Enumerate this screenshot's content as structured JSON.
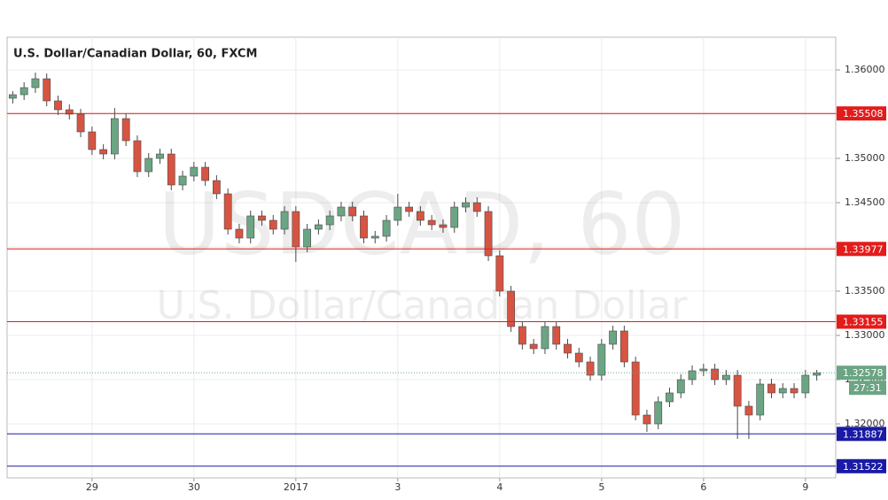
{
  "chart_data": {
    "type": "candlestick",
    "title": "U.S. Dollar/Canadian Dollar, 60, FXCM",
    "watermark": "USDCAD, 60",
    "watermark_subtitle": "U.S. Dollar/Canadian Dollar",
    "up_color": "#6ba583",
    "down_color": "#d75442",
    "grid": true,
    "ylim": [
      1.3139,
      1.3637
    ],
    "yticks": [
      {
        "value": 1.32,
        "label": "1.32000"
      },
      {
        "value": 1.325,
        "label": "1.32500"
      },
      {
        "value": 1.33,
        "label": "1.33000"
      },
      {
        "value": 1.335,
        "label": "1.33500"
      },
      {
        "value": 1.34,
        "label": "1.34000"
      },
      {
        "value": 1.345,
        "label": "1.34500"
      },
      {
        "value": 1.35,
        "label": "1.35000"
      },
      {
        "value": 1.355,
        "label": "1.35500"
      },
      {
        "value": 1.36,
        "label": "1.36000"
      }
    ],
    "xticks": [
      {
        "value": 7,
        "label": "29"
      },
      {
        "value": 16,
        "label": "30"
      },
      {
        "value": 25,
        "label": "2017"
      },
      {
        "value": 34,
        "label": "3"
      },
      {
        "value": 43,
        "label": "4"
      },
      {
        "value": 52,
        "label": "5"
      },
      {
        "value": 61,
        "label": "6"
      },
      {
        "value": 70,
        "label": "9"
      }
    ],
    "open": [
      1.3568,
      1.3572,
      1.358,
      1.359,
      1.3565,
      1.3555,
      1.355,
      1.353,
      1.351,
      1.3505,
      1.3545,
      1.352,
      1.3485,
      1.35,
      1.3505,
      1.347,
      1.348,
      1.349,
      1.3475,
      1.346,
      1.342,
      1.341,
      1.3435,
      1.343,
      1.342,
      1.344,
      1.34,
      1.342,
      1.3425,
      1.3435,
      1.3445,
      1.3435,
      1.341,
      1.3412,
      1.343,
      1.3445,
      1.344,
      1.343,
      1.3425,
      1.3422,
      1.3445,
      1.345,
      1.344,
      1.339,
      1.335,
      1.331,
      1.329,
      1.3285,
      1.331,
      1.329,
      1.328,
      1.327,
      1.3255,
      1.329,
      1.3305,
      1.327,
      1.321,
      1.32,
      1.3225,
      1.3235,
      1.325,
      1.326,
      1.3262,
      1.325,
      1.3255,
      1.322,
      1.321,
      1.3245,
      1.3235,
      1.324,
      1.3235,
      1.3255
    ],
    "high": [
      1.3576,
      1.3586,
      1.3597,
      1.3596,
      1.3571,
      1.3561,
      1.3556,
      1.3536,
      1.3516,
      1.3557,
      1.3551,
      1.3526,
      1.3506,
      1.3511,
      1.3511,
      1.3486,
      1.3496,
      1.3496,
      1.3481,
      1.3466,
      1.3426,
      1.3441,
      1.3441,
      1.3436,
      1.3446,
      1.3446,
      1.3426,
      1.3431,
      1.3441,
      1.3451,
      1.3451,
      1.3441,
      1.3418,
      1.3436,
      1.346,
      1.3451,
      1.3446,
      1.3436,
      1.3431,
      1.3451,
      1.3456,
      1.3456,
      1.3446,
      1.3396,
      1.3356,
      1.3316,
      1.3296,
      1.3316,
      1.3316,
      1.3296,
      1.3286,
      1.3276,
      1.3296,
      1.3311,
      1.3311,
      1.3276,
      1.3216,
      1.3231,
      1.3241,
      1.3256,
      1.3266,
      1.3268,
      1.3268,
      1.3261,
      1.3261,
      1.3226,
      1.3251,
      1.3251,
      1.3246,
      1.3246,
      1.3261,
      1.3261
    ],
    "low": [
      1.3562,
      1.3566,
      1.3574,
      1.3559,
      1.3549,
      1.3544,
      1.3524,
      1.3504,
      1.3499,
      1.3499,
      1.3514,
      1.3479,
      1.3479,
      1.3494,
      1.3464,
      1.3464,
      1.3474,
      1.3469,
      1.3454,
      1.3414,
      1.3404,
      1.3404,
      1.3424,
      1.3414,
      1.3414,
      1.3383,
      1.3394,
      1.3414,
      1.3419,
      1.3429,
      1.3429,
      1.3404,
      1.3404,
      1.3406,
      1.3424,
      1.3434,
      1.3424,
      1.3419,
      1.3416,
      1.3416,
      1.3439,
      1.3434,
      1.3384,
      1.3344,
      1.3304,
      1.3284,
      1.3279,
      1.3279,
      1.3284,
      1.3274,
      1.3264,
      1.3249,
      1.3249,
      1.3284,
      1.3264,
      1.3204,
      1.3191,
      1.3194,
      1.3219,
      1.3229,
      1.3244,
      1.3254,
      1.3244,
      1.3244,
      1.3183,
      1.3183,
      1.3204,
      1.3229,
      1.3229,
      1.3229,
      1.3229,
      1.3249
    ],
    "close": [
      1.3572,
      1.358,
      1.359,
      1.3565,
      1.3555,
      1.355,
      1.353,
      1.351,
      1.3505,
      1.3545,
      1.352,
      1.3485,
      1.35,
      1.3505,
      1.347,
      1.348,
      1.349,
      1.3475,
      1.346,
      1.342,
      1.341,
      1.3435,
      1.343,
      1.342,
      1.344,
      1.34,
      1.342,
      1.3425,
      1.3435,
      1.3445,
      1.3435,
      1.341,
      1.3412,
      1.343,
      1.3445,
      1.344,
      1.343,
      1.3425,
      1.3422,
      1.3445,
      1.345,
      1.344,
      1.339,
      1.335,
      1.331,
      1.329,
      1.3285,
      1.331,
      1.329,
      1.328,
      1.327,
      1.3255,
      1.329,
      1.3305,
      1.327,
      1.321,
      1.32,
      1.3225,
      1.3235,
      1.325,
      1.326,
      1.3262,
      1.325,
      1.3255,
      1.322,
      1.321,
      1.3245,
      1.3235,
      1.324,
      1.3235,
      1.3255,
      1.32578
    ],
    "levels": [
      {
        "value": 1.35508,
        "color": "#e31b1b"
      },
      {
        "value": 1.33977,
        "color": "#e31b1b"
      },
      {
        "value": 1.33155,
        "color": "#e31b1b"
      },
      {
        "value": 1.31887,
        "color": "#1a1aa6"
      },
      {
        "value": 1.31522,
        "color": "#1a1aa6"
      }
    ],
    "last_price": 1.32578,
    "last_color": "#6ba583",
    "countdown": "27:31"
  }
}
